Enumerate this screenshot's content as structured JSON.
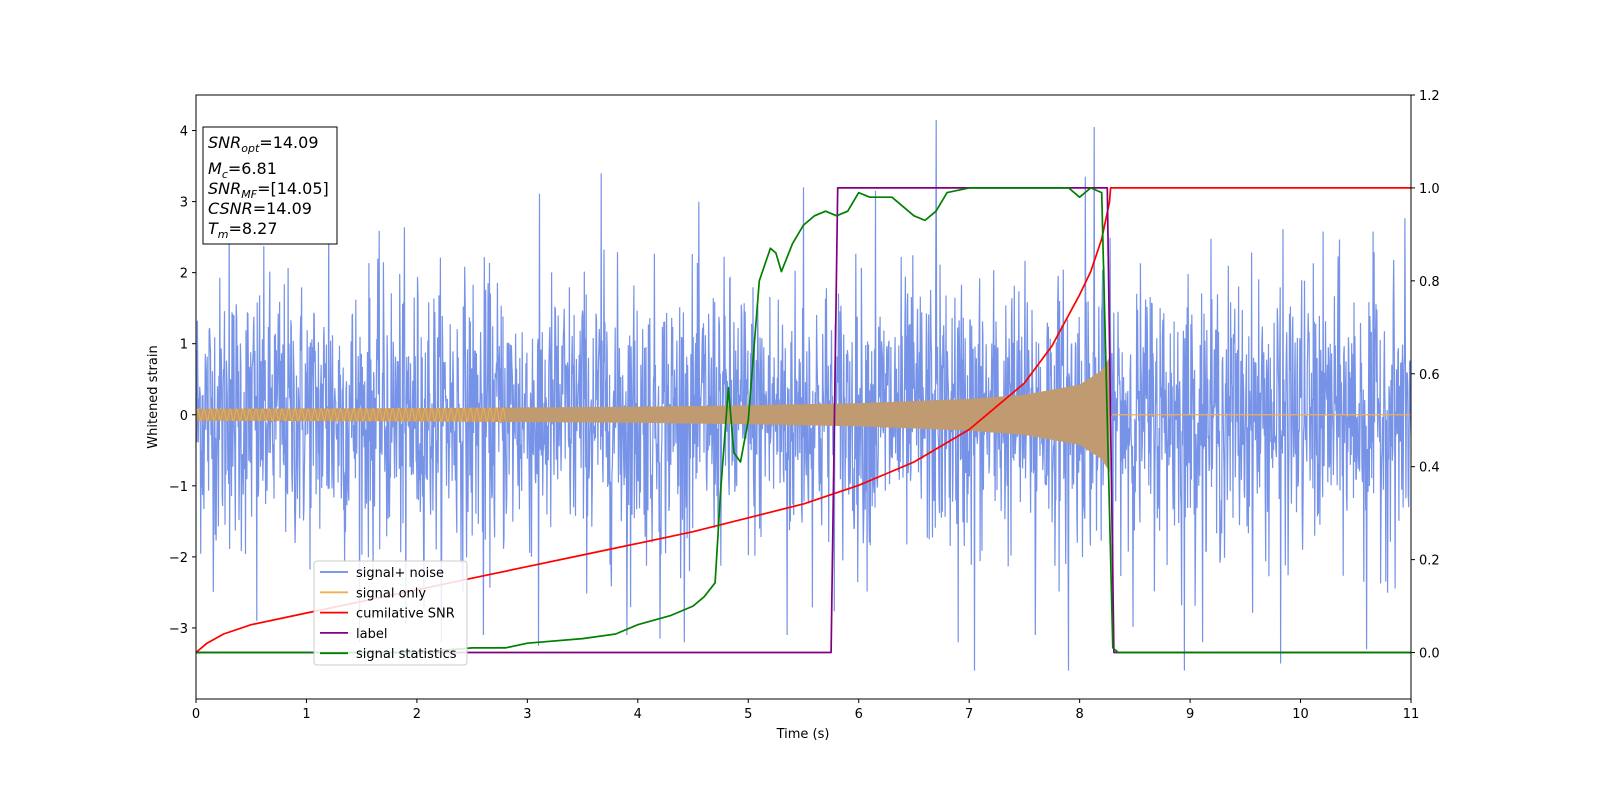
{
  "chart_data": {
    "type": "line",
    "xlabel": "Time (s)",
    "ylabel": "Whitened strain",
    "xlim": [
      0,
      11
    ],
    "ylim_left": [
      -4,
      4.5
    ],
    "ylim_right": [
      -0.1,
      1.2
    ],
    "x_ticks": [
      "0",
      "1",
      "2",
      "3",
      "4",
      "5",
      "6",
      "7",
      "8",
      "9",
      "10",
      "11"
    ],
    "y_left_ticks": [
      "−3",
      "−2",
      "−1",
      "0",
      "1",
      "2",
      "3",
      "4"
    ],
    "y_right_ticks": [
      "0.0",
      "0.2",
      "0.4",
      "0.6",
      "0.8",
      "1.0",
      "1.2"
    ],
    "annotation": {
      "lines": [
        {
          "sym": "SNR",
          "sub": "opt",
          "val": "=14.09"
        },
        {
          "sym": "M",
          "sub": "c",
          "val": "=6.81"
        },
        {
          "sym": "SNR",
          "sub": "MF",
          "val": "=[14.05]"
        },
        {
          "sym": "CSNR",
          "sub": "",
          "val": "=14.09"
        },
        {
          "sym": "T",
          "sub": "m",
          "val": "=8.27"
        }
      ]
    },
    "colors": {
      "noise": "#6b8ae6",
      "signal": "#f0b050",
      "signal_overlay": "#c09a70",
      "csnr": "#ff0000",
      "label": "#800080",
      "stat": "#008000"
    },
    "legend": {
      "position": "lower-left",
      "entries": [
        "signal+ noise",
        "signal only",
        "cumilative SNR",
        "label",
        "signal statistics"
      ]
    },
    "signal_envelope": [
      [
        0,
        0.08
      ],
      [
        2,
        0.09
      ],
      [
        4,
        0.11
      ],
      [
        5,
        0.13
      ],
      [
        6,
        0.16
      ],
      [
        7,
        0.22
      ],
      [
        7.5,
        0.28
      ],
      [
        8,
        0.42
      ],
      [
        8.2,
        0.62
      ],
      [
        8.27,
        0.8
      ]
    ],
    "series": [
      {
        "name": "signal+ noise",
        "axis": "left",
        "noise_sigma": 0.95,
        "peaks": [
          [
            0.3,
            2.9
          ],
          [
            0.55,
            -2.9
          ],
          [
            1.2,
            2.9
          ],
          [
            1.9,
            -2.95
          ],
          [
            2.6,
            -3.1
          ],
          [
            3.1,
            -3.25
          ],
          [
            3.67,
            3.4
          ],
          [
            3.9,
            -3.1
          ],
          [
            4.2,
            -3.15
          ],
          [
            5.5,
            3.2
          ],
          [
            5.35,
            -3.1
          ],
          [
            6.15,
            3.15
          ],
          [
            6.7,
            4.15
          ],
          [
            6.9,
            -3.2
          ],
          [
            7.05,
            -3.6
          ],
          [
            7.6,
            -3.1
          ],
          [
            7.9,
            -3.6
          ],
          [
            8.13,
            4.05
          ],
          [
            8.05,
            3.35
          ],
          [
            8.95,
            -3.6
          ],
          [
            9.82,
            -3.5
          ],
          [
            10.6,
            -3.3
          ]
        ]
      },
      {
        "name": "cumilative SNR",
        "axis": "right",
        "x": [
          0,
          0.1,
          0.25,
          0.5,
          1,
          1.5,
          2,
          2.5,
          3,
          3.5,
          4,
          4.5,
          5,
          5.5,
          6,
          6.5,
          7,
          7.25,
          7.5,
          7.75,
          8,
          8.1,
          8.2,
          8.27,
          8.28,
          11
        ],
        "y": [
          0.0,
          0.02,
          0.04,
          0.06,
          0.085,
          0.11,
          0.135,
          0.16,
          0.185,
          0.21,
          0.235,
          0.26,
          0.29,
          0.32,
          0.36,
          0.41,
          0.48,
          0.53,
          0.58,
          0.66,
          0.77,
          0.82,
          0.89,
          0.97,
          1.0,
          1.0
        ]
      },
      {
        "name": "label",
        "axis": "right",
        "x": [
          0,
          5.75,
          5.81,
          8.25,
          8.31,
          11
        ],
        "y": [
          0,
          0,
          1,
          1,
          0,
          0
        ]
      },
      {
        "name": "signal statistics",
        "axis": "right",
        "x": [
          0,
          2,
          2.5,
          2.8,
          3,
          3.5,
          3.8,
          4,
          4.3,
          4.5,
          4.6,
          4.7,
          4.75,
          4.82,
          4.87,
          4.93,
          5,
          5.1,
          5.2,
          5.25,
          5.3,
          5.4,
          5.5,
          5.6,
          5.7,
          5.8,
          5.9,
          6,
          6.1,
          6.3,
          6.5,
          6.6,
          6.7,
          6.8,
          7,
          7.5,
          7.9,
          8,
          8.1,
          8.2,
          8.25,
          8.3,
          8.35,
          11
        ],
        "y": [
          0.0,
          0.0,
          0.01,
          0.01,
          0.02,
          0.03,
          0.04,
          0.06,
          0.08,
          0.1,
          0.12,
          0.15,
          0.35,
          0.57,
          0.43,
          0.41,
          0.5,
          0.8,
          0.87,
          0.86,
          0.82,
          0.88,
          0.92,
          0.94,
          0.95,
          0.94,
          0.95,
          0.99,
          0.98,
          0.98,
          0.94,
          0.93,
          0.95,
          0.99,
          1.0,
          1.0,
          1.0,
          0.98,
          1.0,
          0.99,
          0.5,
          0.01,
          0.0,
          0.0
        ]
      }
    ]
  }
}
